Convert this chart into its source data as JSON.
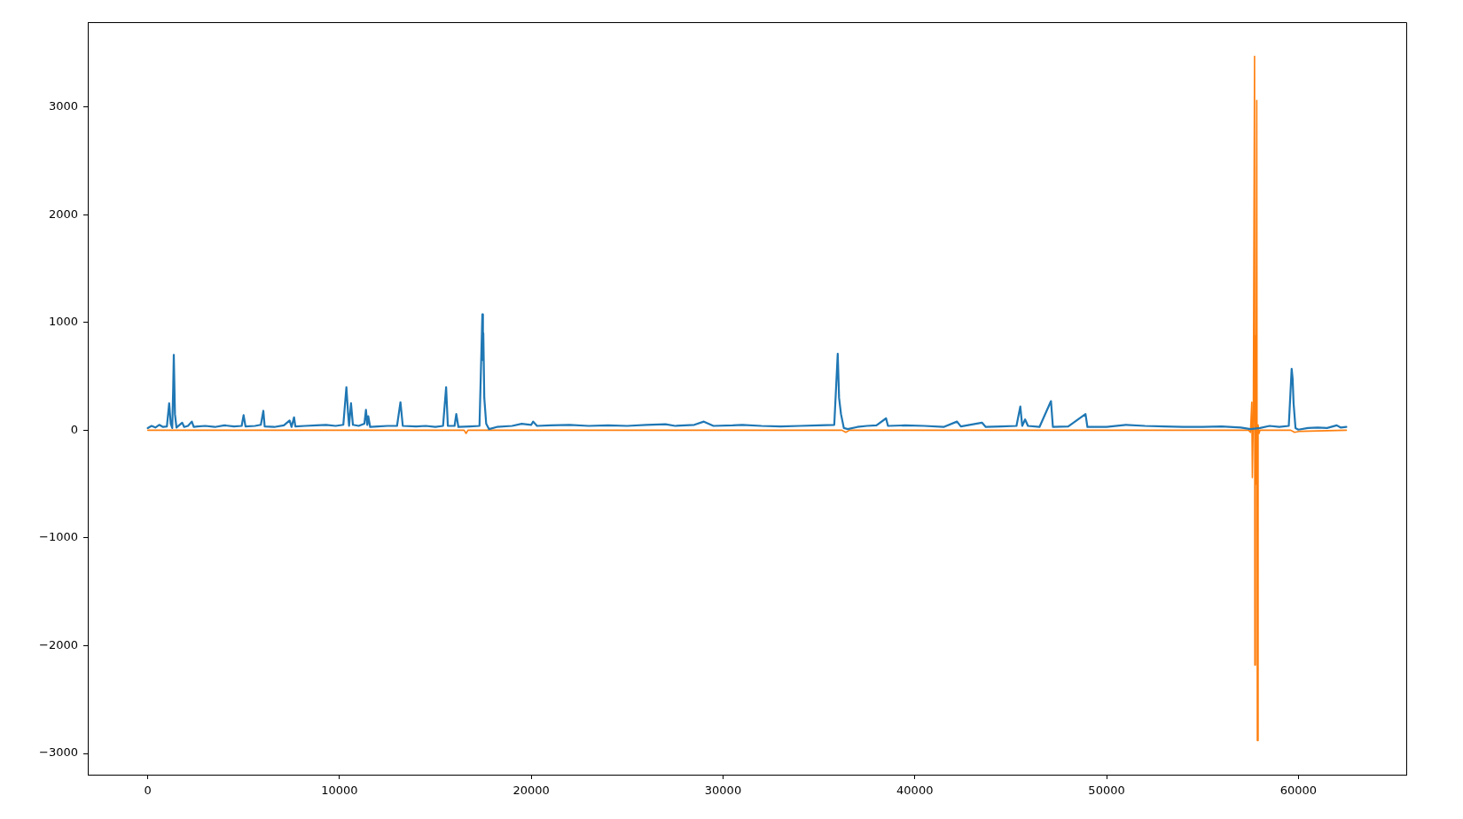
{
  "chart_data": {
    "type": "line",
    "xlim": [
      -3125,
      65625
    ],
    "ylim": [
      -3197,
      3787
    ],
    "xticks": [
      0,
      10000,
      20000,
      30000,
      40000,
      50000,
      60000
    ],
    "yticks": [
      {
        "value": -3000,
        "label": "−3000"
      },
      {
        "value": -2000,
        "label": "−2000"
      },
      {
        "value": -1000,
        "label": "−1000"
      },
      0,
      1000,
      2000,
      3000
    ],
    "grid": false,
    "legend": false,
    "marker": "none",
    "line_style": "solid",
    "series": [
      {
        "color": "#1f77b4",
        "x": [
          0,
          200,
          400,
          600,
          800,
          1000,
          1120,
          1200,
          1280,
          1330,
          1360,
          1420,
          1500,
          1800,
          1900,
          2100,
          2300,
          2400,
          2600,
          3000,
          3500,
          4000,
          4500,
          4900,
          5000,
          5100,
          5600,
          5900,
          6030,
          6100,
          6600,
          7100,
          7400,
          7500,
          7630,
          7700,
          8200,
          8800,
          9300,
          9800,
          10200,
          10360,
          10450,
          10500,
          10600,
          10700,
          11000,
          11300,
          11380,
          11450,
          11500,
          11600,
          12000,
          12500,
          13000,
          13180,
          13300,
          14000,
          14500,
          15000,
          15400,
          15560,
          15650,
          16000,
          16090,
          16200,
          16800,
          17300,
          17450,
          17480,
          17500,
          17550,
          17650,
          17800,
          18200,
          19000,
          19500,
          20000,
          20100,
          20300,
          21000,
          22000,
          23000,
          24000,
          25000,
          26000,
          27000,
          27500,
          28500,
          29000,
          29500,
          30500,
          31000,
          32000,
          33000,
          34000,
          35000,
          35800,
          35980,
          36050,
          36150,
          36300,
          36500,
          37000,
          37500,
          38000,
          38500,
          38600,
          39500,
          40500,
          41500,
          42200,
          42400,
          43500,
          43700,
          44500,
          45300,
          45500,
          45600,
          45750,
          45900,
          46500,
          47100,
          47200,
          48000,
          48900,
          49000,
          50000,
          51000,
          52000,
          53000,
          54000,
          55000,
          56000,
          57000,
          57500,
          58000,
          58500,
          59000,
          59500,
          59650,
          59700,
          59750,
          59850,
          60000,
          60500,
          61000,
          61500,
          62000,
          62200,
          62500
        ],
        "values": [
          20,
          40,
          25,
          50,
          30,
          35,
          250,
          60,
          20,
          400,
          700,
          150,
          25,
          70,
          30,
          40,
          80,
          30,
          35,
          40,
          30,
          45,
          35,
          40,
          140,
          35,
          40,
          50,
          180,
          35,
          30,
          45,
          90,
          30,
          120,
          35,
          40,
          45,
          50,
          40,
          50,
          400,
          150,
          40,
          250,
          50,
          40,
          60,
          190,
          50,
          130,
          30,
          35,
          40,
          40,
          260,
          40,
          35,
          40,
          30,
          40,
          400,
          40,
          40,
          150,
          30,
          35,
          40,
          1075,
          650,
          900,
          300,
          60,
          10,
          30,
          40,
          60,
          50,
          80,
          40,
          45,
          50,
          40,
          45,
          40,
          50,
          55,
          40,
          50,
          80,
          40,
          45,
          50,
          40,
          35,
          40,
          45,
          50,
          710,
          300,
          150,
          20,
          10,
          30,
          40,
          45,
          110,
          40,
          45,
          40,
          30,
          80,
          35,
          70,
          30,
          35,
          40,
          220,
          40,
          100,
          40,
          30,
          270,
          30,
          35,
          150,
          30,
          30,
          50,
          40,
          35,
          30,
          30,
          35,
          25,
          10,
          20,
          40,
          30,
          40,
          570,
          480,
          250,
          20,
          5,
          20,
          25,
          20,
          45,
          25,
          30
        ]
      },
      {
        "color": "#ff7f0e",
        "x": [
          0,
          16500,
          16600,
          16700,
          36200,
          36400,
          36600,
          57400,
          57500,
          57570,
          57600,
          57650,
          57715,
          57730,
          57760,
          57790,
          57830,
          57860,
          57900,
          57950,
          58000,
          59600,
          59800,
          60100,
          62500
        ],
        "values": [
          0,
          0,
          -30,
          0,
          0,
          -20,
          0,
          0,
          -20,
          260,
          -440,
          100,
          3470,
          -2180,
          870,
          -500,
          3060,
          -2880,
          50,
          -30,
          0,
          0,
          -20,
          -10,
          0
        ]
      }
    ]
  }
}
